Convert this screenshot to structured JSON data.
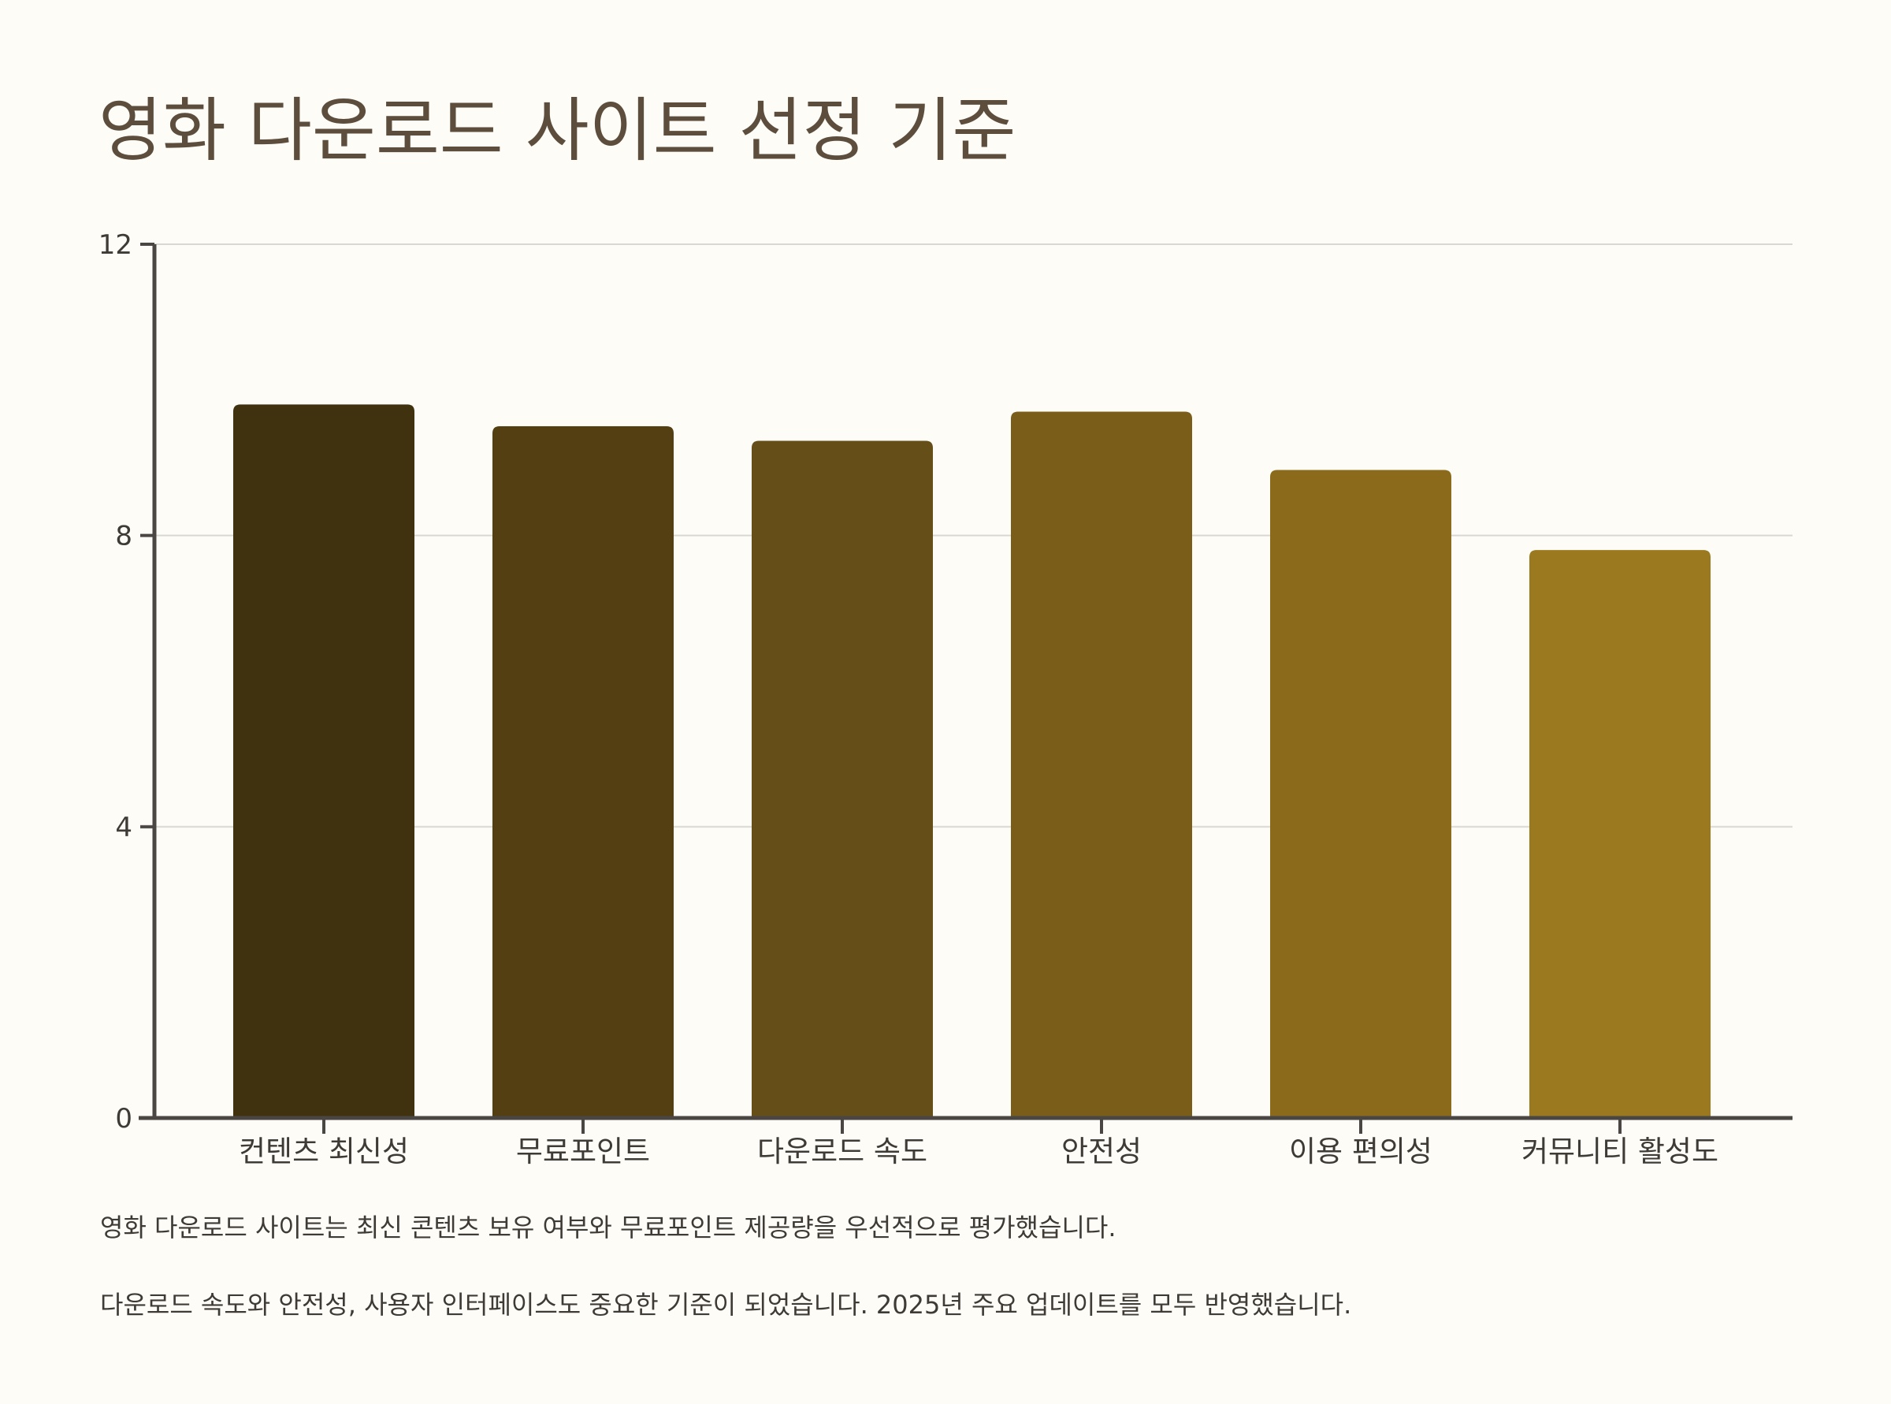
{
  "title": "영화 다운로드 사이트 선정 기준",
  "chart_data": {
    "type": "bar",
    "title": "영화 다운로드 사이트 선정 기준",
    "categories": [
      "컨텐츠 최신성",
      "무료포인트",
      "다운로드 속도",
      "안전성",
      "이용 편의성",
      "커뮤니티 활성도"
    ],
    "values": [
      9.8,
      9.5,
      9.3,
      9.7,
      8.9,
      7.8
    ],
    "colors": [
      "#40310f",
      "#533f12",
      "#654e17",
      "#7a5d18",
      "#8b6a1b",
      "#9b7a1f"
    ],
    "xlabel": "",
    "ylabel": "",
    "ylim": [
      0,
      12
    ],
    "yticks": [
      "0",
      "4",
      "8",
      "12"
    ],
    "grid": true
  },
  "notes": [
    "영화 다운로드 사이트는 최신 콘텐츠 보유 여부와 무료포인트 제공량을 우선적으로 평가했습니다.",
    "다운로드 속도와 안전성, 사용자 인터페이스도 중요한 기준이 되었습니다. 2025년 주요 업데이트를 모두 반영했습니다."
  ],
  "colors": {
    "axis": "#4a4643",
    "grid": "#d9d7d2",
    "title": "#5c4d3d",
    "text": "#3e3a36",
    "background": "#fefcf7"
  }
}
